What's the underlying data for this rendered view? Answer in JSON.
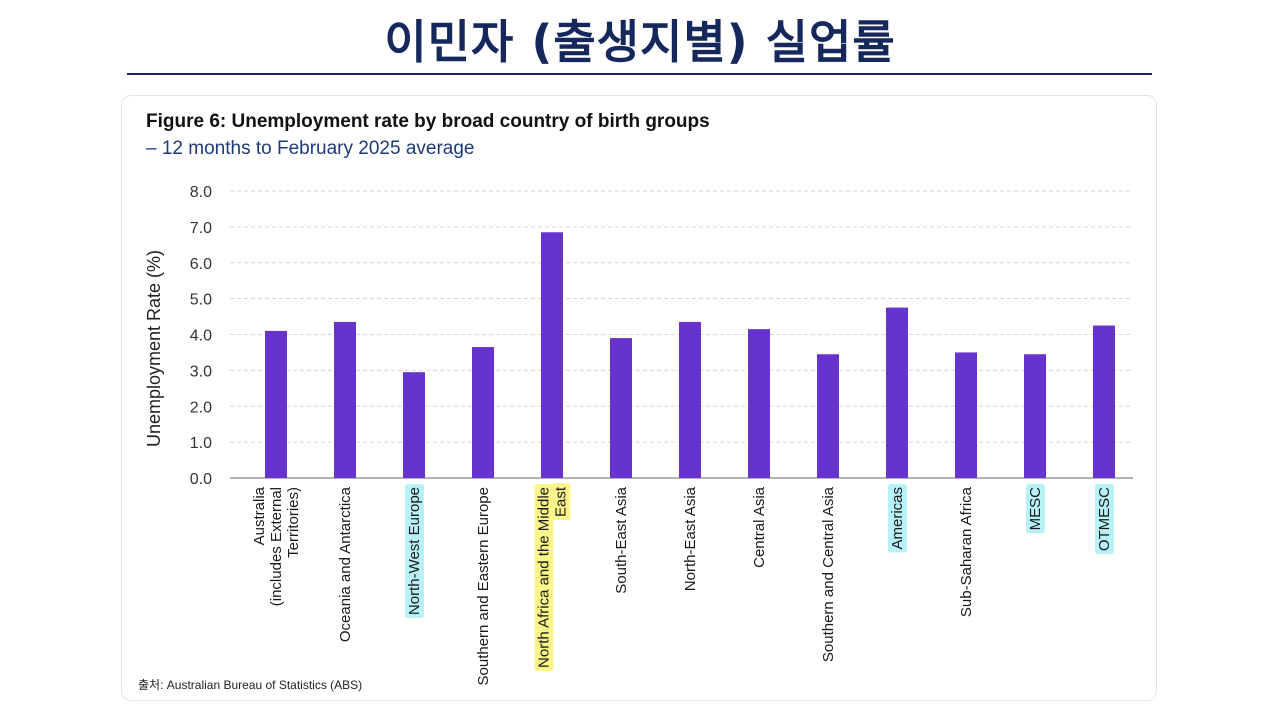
{
  "slide": {
    "title": "이민자 (출생지별) 실업률"
  },
  "figure": {
    "title": "Figure 6: Unemployment rate by broad country of birth groups",
    "subtitle": "– 12 months to February 2025 average"
  },
  "source": {
    "label": "출처",
    "text": ": Australian Bureau of Statistics (ABS)"
  },
  "colors": {
    "bar": "#6633cc",
    "highlight_cyan": "#b8f1f7",
    "highlight_yellow": "#fbf58a",
    "title": "#14285c"
  },
  "chart_data": {
    "type": "bar",
    "title": "Figure 6: Unemployment rate by broad country of birth groups",
    "subtitle": "– 12 months to February 2025 average",
    "xlabel": "",
    "ylabel": "Unemployment Rate (%)",
    "ylim": [
      0,
      8
    ],
    "yticks": [
      "0.0",
      "1.0",
      "2.0",
      "3.0",
      "4.0",
      "5.0",
      "6.0",
      "7.0",
      "8.0"
    ],
    "grid": true,
    "categories": [
      {
        "label": [
          "Australia",
          "(includes External",
          "Territories)"
        ],
        "value": 4.1,
        "highlight": ""
      },
      {
        "label": [
          "Oceania and Antarctica"
        ],
        "value": 4.35,
        "highlight": ""
      },
      {
        "label": [
          "North-West Europe"
        ],
        "value": 2.95,
        "highlight": "cyan"
      },
      {
        "label": [
          "Southern and Eastern Europe"
        ],
        "value": 3.65,
        "highlight": ""
      },
      {
        "label": [
          "North Africa and the Middle",
          "East"
        ],
        "value": 6.85,
        "highlight": "yellow"
      },
      {
        "label": [
          "South-East Asia"
        ],
        "value": 3.9,
        "highlight": ""
      },
      {
        "label": [
          "North-East Asia"
        ],
        "value": 4.35,
        "highlight": ""
      },
      {
        "label": [
          "Central Asia"
        ],
        "value": 4.15,
        "highlight": ""
      },
      {
        "label": [
          "Southern and Central Asia"
        ],
        "value": 3.45,
        "highlight": ""
      },
      {
        "label": [
          "Americas"
        ],
        "value": 4.75,
        "highlight": "cyan"
      },
      {
        "label": [
          "Sub-Saharan Africa"
        ],
        "value": 3.5,
        "highlight": ""
      },
      {
        "label": [
          "MESC"
        ],
        "value": 3.45,
        "highlight": "cyan"
      },
      {
        "label": [
          "OTMESC"
        ],
        "value": 4.25,
        "highlight": "cyan"
      }
    ]
  }
}
